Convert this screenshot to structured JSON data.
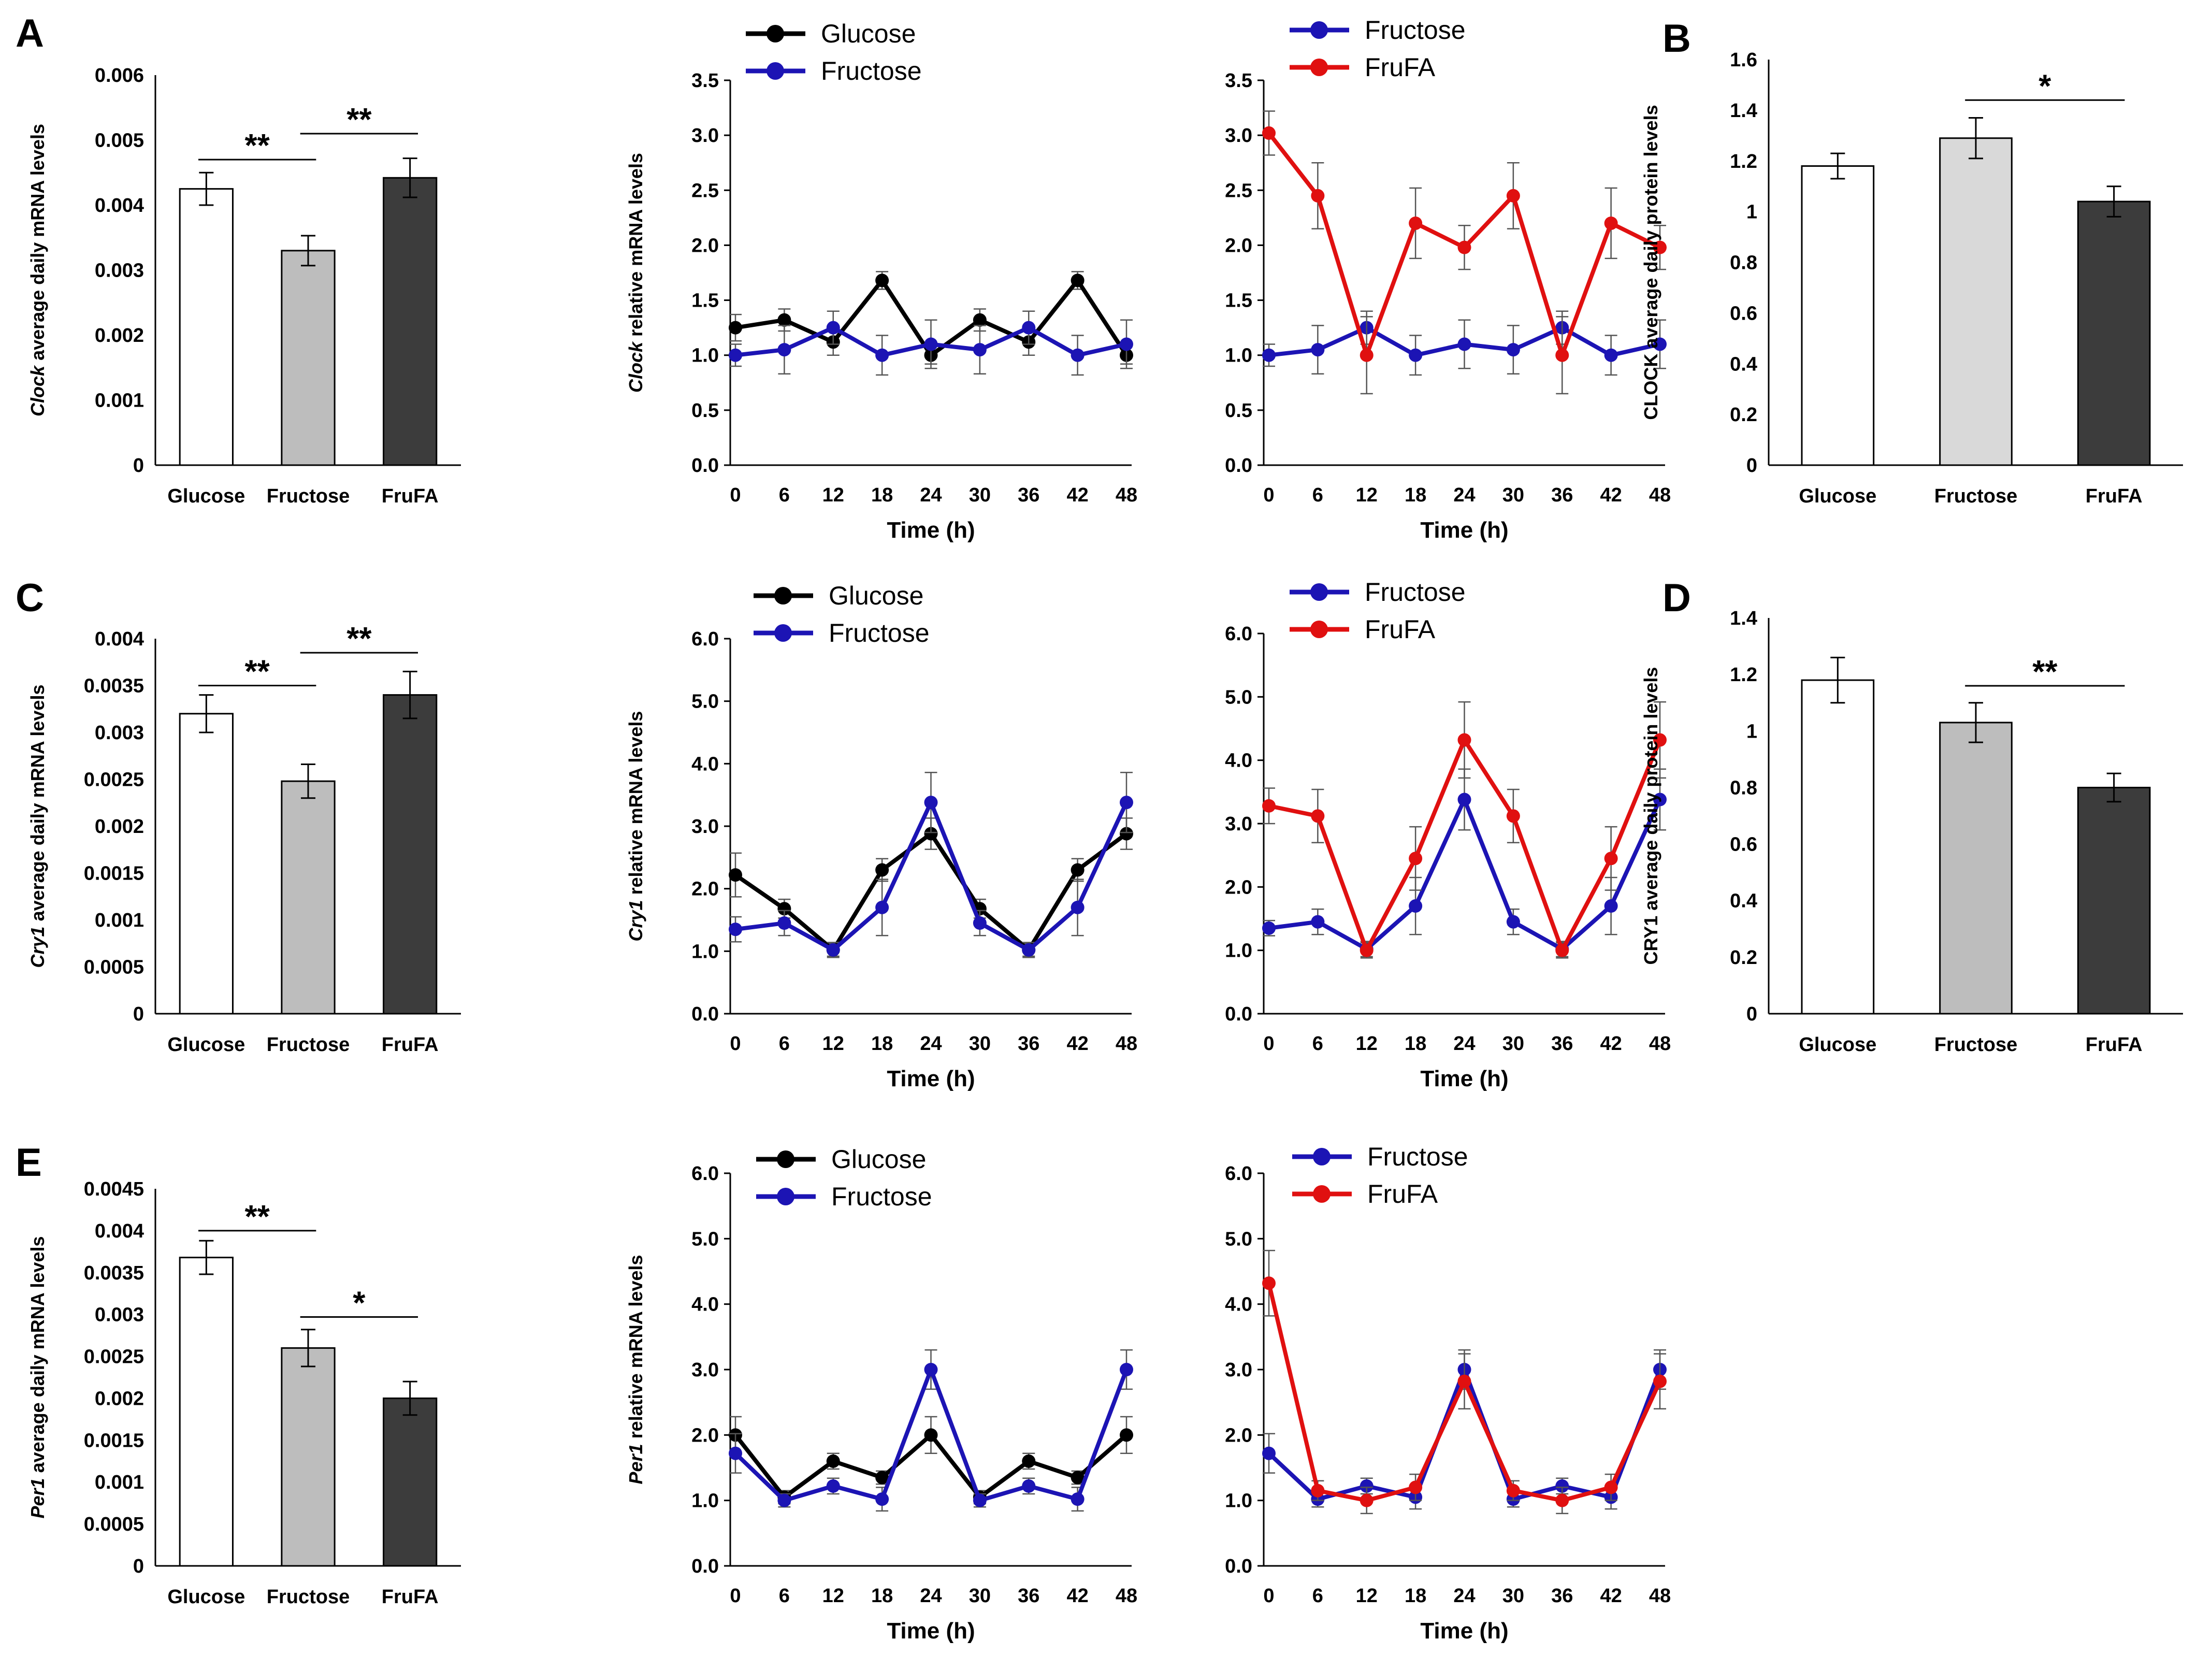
{
  "colors": {
    "glucose": "#000000",
    "fructose": "#1c14b4",
    "frufa": "#e01010",
    "bar_glucose": "#ffffff",
    "bar_fructose": "#bdbdbd",
    "bar_frufa": "#3c3c3c",
    "bar_fructose_light": "#d9d9d9"
  },
  "chart_data": [
    {
      "type": "bar",
      "panel": "A",
      "ylabel_italic": "Clock",
      "ylabel_rest": " average daily mRNA levels",
      "categories": [
        "Glucose",
        "Fructose",
        "FruFA"
      ],
      "values": [
        0.00425,
        0.0033,
        0.00442
      ],
      "errors": [
        0.00025,
        0.00023,
        0.0003
      ],
      "ylim": [
        0,
        0.006
      ],
      "yticks": [
        "0",
        "0.001",
        "0.002",
        "0.003",
        "0.004",
        "0.005",
        "0.006"
      ],
      "significance": [
        {
          "from": 0,
          "to": 1,
          "y": 0.0047,
          "label": "**"
        },
        {
          "from": 1,
          "to": 2,
          "y": 0.0051,
          "label": "**"
        }
      ]
    },
    {
      "type": "line",
      "panel": "",
      "ylabel_italic": "Clock",
      "ylabel_rest": " relative mRNA levels",
      "xlabel": "Time (h)",
      "x": [
        "0",
        "6",
        "12",
        "18",
        "24",
        "30",
        "36",
        "42",
        "48"
      ],
      "ylim": [
        0,
        3.5
      ],
      "yticks": [
        "0.0",
        "0.5",
        "1.0",
        "1.5",
        "2.0",
        "2.5",
        "3.0",
        "3.5"
      ],
      "series": [
        {
          "name": "Glucose",
          "color_key": "glucose",
          "values": [
            1.25,
            1.32,
            1.12,
            1.68,
            1.0,
            1.32,
            1.12,
            1.68,
            1.0
          ],
          "errors": [
            0.12,
            0.1,
            0.12,
            0.08,
            0.08,
            0.1,
            0.12,
            0.08,
            0.08
          ]
        },
        {
          "name": "Fructose",
          "color_key": "fructose",
          "values": [
            1.0,
            1.05,
            1.25,
            1.0,
            1.1,
            1.05,
            1.25,
            1.0,
            1.1
          ],
          "errors": [
            0.1,
            0.22,
            0.15,
            0.18,
            0.22,
            0.22,
            0.15,
            0.18,
            0.22
          ]
        }
      ]
    },
    {
      "type": "line",
      "panel": "",
      "ylabel_italic": "",
      "ylabel_rest": "",
      "xlabel": "Time (h)",
      "x": [
        "0",
        "6",
        "12",
        "18",
        "24",
        "30",
        "36",
        "42",
        "48"
      ],
      "ylim": [
        0,
        3.5
      ],
      "yticks": [
        "0.0",
        "0.5",
        "1.0",
        "1.5",
        "2.0",
        "2.5",
        "3.0",
        "3.5"
      ],
      "series": [
        {
          "name": "Fructose",
          "color_key": "fructose",
          "values": [
            1.0,
            1.05,
            1.25,
            1.0,
            1.1,
            1.05,
            1.25,
            1.0,
            1.1
          ],
          "errors": [
            0.1,
            0.22,
            0.15,
            0.18,
            0.22,
            0.22,
            0.15,
            0.18,
            0.22
          ]
        },
        {
          "name": "FruFA",
          "color_key": "frufa",
          "values": [
            3.02,
            2.45,
            1.0,
            2.2,
            1.98,
            2.45,
            1.0,
            2.2,
            1.98
          ],
          "errors": [
            0.2,
            0.3,
            0.35,
            0.32,
            0.2,
            0.3,
            0.35,
            0.32,
            0.2
          ]
        }
      ]
    },
    {
      "type": "bar",
      "panel": "B",
      "ylabel_italic": "",
      "ylabel_rest": "CLOCK average daily protein levels",
      "categories": [
        "Glucose",
        "Fructose",
        "FruFA"
      ],
      "values": [
        1.18,
        1.29,
        1.04
      ],
      "errors": [
        0.05,
        0.08,
        0.06
      ],
      "ylim": [
        0,
        1.6
      ],
      "yticks": [
        "0",
        "0.2",
        "0.4",
        "0.6",
        "0.8",
        "1",
        "1.2",
        "1.4",
        "1.6"
      ],
      "significance": [
        {
          "from": 1,
          "to": 2,
          "y": 1.44,
          "label": "*"
        }
      ]
    },
    {
      "type": "bar",
      "panel": "C",
      "ylabel_italic": "Cry1",
      "ylabel_rest": " average daily mRNA levels",
      "categories": [
        "Glucose",
        "Fructose",
        "FruFA"
      ],
      "values": [
        0.0032,
        0.00248,
        0.0034
      ],
      "errors": [
        0.0002,
        0.00018,
        0.00025
      ],
      "ylim": [
        0,
        0.004
      ],
      "yticks": [
        "0",
        "0.0005",
        "0.001",
        "0.0015",
        "0.002",
        "0.0025",
        "0.003",
        "0.0035",
        "0.004"
      ],
      "significance": [
        {
          "from": 0,
          "to": 1,
          "y": 0.0035,
          "label": "**"
        },
        {
          "from": 1,
          "to": 2,
          "y": 0.00385,
          "label": "**"
        }
      ]
    },
    {
      "type": "line",
      "panel": "",
      "ylabel_italic": "Cry1",
      "ylabel_rest": " relative mRNA levels",
      "xlabel": "Time (h)",
      "x": [
        "0",
        "6",
        "12",
        "18",
        "24",
        "30",
        "36",
        "42",
        "48"
      ],
      "ylim": [
        0,
        6
      ],
      "yticks": [
        "0.0",
        "1.0",
        "2.0",
        "3.0",
        "4.0",
        "5.0",
        "6.0"
      ],
      "series": [
        {
          "name": "Glucose",
          "color_key": "glucose",
          "values": [
            2.22,
            1.68,
            1.02,
            2.3,
            2.88,
            1.68,
            1.02,
            2.3,
            2.88
          ],
          "errors": [
            0.35,
            0.15,
            0.1,
            0.18,
            0.25,
            0.15,
            0.1,
            0.18,
            0.25
          ]
        },
        {
          "name": "Fructose",
          "color_key": "fructose",
          "values": [
            1.35,
            1.45,
            1.02,
            1.7,
            3.38,
            1.45,
            1.02,
            1.7,
            3.38
          ],
          "errors": [
            0.2,
            0.2,
            0.12,
            0.45,
            0.48,
            0.2,
            0.12,
            0.45,
            0.48
          ]
        }
      ]
    },
    {
      "type": "line",
      "panel": "",
      "ylabel_italic": "",
      "ylabel_rest": "",
      "xlabel": "Time (h)",
      "x": [
        "0",
        "6",
        "12",
        "18",
        "24",
        "30",
        "36",
        "42",
        "48"
      ],
      "ylim": [
        0,
        6
      ],
      "yticks": [
        "0.0",
        "1.0",
        "2.0",
        "3.0",
        "4.0",
        "5.0",
        "6.0"
      ],
      "series": [
        {
          "name": "Fructose",
          "color_key": "fructose",
          "values": [
            1.35,
            1.45,
            1.02,
            1.7,
            3.38,
            1.45,
            1.02,
            1.7,
            3.38
          ],
          "errors": [
            0.12,
            0.2,
            0.12,
            0.45,
            0.48,
            0.2,
            0.12,
            0.45,
            0.48
          ]
        },
        {
          "name": "FruFA",
          "color_key": "frufa",
          "values": [
            3.28,
            3.12,
            1.0,
            2.45,
            4.32,
            3.12,
            1.0,
            2.45,
            4.32
          ],
          "errors": [
            0.28,
            0.42,
            0.12,
            0.5,
            0.6,
            0.42,
            0.12,
            0.5,
            0.6
          ]
        }
      ]
    },
    {
      "type": "bar",
      "panel": "D",
      "ylabel_italic": "",
      "ylabel_rest": "CRY1 average daily protein levels",
      "categories": [
        "Glucose",
        "Fructose",
        "FruFA"
      ],
      "values": [
        1.18,
        1.03,
        0.8
      ],
      "errors": [
        0.08,
        0.07,
        0.05
      ],
      "ylim": [
        0,
        1.4
      ],
      "yticks": [
        "0",
        "0.2",
        "0.4",
        "0.6",
        "0.8",
        "1",
        "1.2",
        "1.4"
      ],
      "significance": [
        {
          "from": 1,
          "to": 2,
          "y": 1.16,
          "label": "**"
        }
      ]
    },
    {
      "type": "bar",
      "panel": "E",
      "ylabel_italic": "Per1",
      "ylabel_rest": " average daily mRNA levels",
      "categories": [
        "Glucose",
        "Fructose",
        "FruFA"
      ],
      "values": [
        0.00368,
        0.0026,
        0.002
      ],
      "errors": [
        0.0002,
        0.00022,
        0.0002
      ],
      "ylim": [
        0,
        0.0045
      ],
      "yticks": [
        "0",
        "0.0005",
        "0.001",
        "0.0015",
        "0.002",
        "0.0025",
        "0.003",
        "0.0035",
        "0.004",
        "0.0045"
      ],
      "significance": [
        {
          "from": 0,
          "to": 1,
          "y": 0.004,
          "label": "**"
        },
        {
          "from": 1,
          "to": 2,
          "y": 0.00297,
          "label": "*"
        }
      ]
    },
    {
      "type": "line",
      "panel": "",
      "ylabel_italic": "Per1",
      "ylabel_rest": " relative mRNA levels",
      "xlabel": "Time (h)",
      "x": [
        "0",
        "6",
        "12",
        "18",
        "24",
        "30",
        "36",
        "42",
        "48"
      ],
      "ylim": [
        0,
        6
      ],
      "yticks": [
        "0.0",
        "1.0",
        "2.0",
        "3.0",
        "4.0",
        "5.0",
        "6.0"
      ],
      "series": [
        {
          "name": "Glucose",
          "color_key": "glucose",
          "values": [
            2.0,
            1.05,
            1.6,
            1.35,
            2.0,
            1.05,
            1.6,
            1.35,
            2.0
          ],
          "errors": [
            0.28,
            0.1,
            0.12,
            0.1,
            0.28,
            0.1,
            0.12,
            0.1,
            0.28
          ]
        },
        {
          "name": "Fructose",
          "color_key": "fructose",
          "values": [
            1.72,
            1.0,
            1.22,
            1.02,
            3.0,
            1.0,
            1.22,
            1.02,
            3.0
          ],
          "errors": [
            0.3,
            0.1,
            0.12,
            0.18,
            0.3,
            0.1,
            0.12,
            0.18,
            0.3
          ]
        }
      ]
    },
    {
      "type": "line",
      "panel": "",
      "ylabel_italic": "",
      "ylabel_rest": "",
      "xlabel": "Time (h)",
      "x": [
        "0",
        "6",
        "12",
        "18",
        "24",
        "30",
        "36",
        "42",
        "48"
      ],
      "ylim": [
        0,
        6
      ],
      "yticks": [
        "0.0",
        "1.0",
        "2.0",
        "3.0",
        "4.0",
        "5.0",
        "6.0"
      ],
      "series": [
        {
          "name": "Fructose",
          "color_key": "fructose",
          "values": [
            1.72,
            1.02,
            1.22,
            1.05,
            3.0,
            1.02,
            1.22,
            1.05,
            3.0
          ],
          "errors": [
            0.3,
            0.12,
            0.12,
            0.18,
            0.3,
            0.12,
            0.12,
            0.18,
            0.3
          ]
        },
        {
          "name": "FruFA",
          "color_key": "frufa",
          "values": [
            4.32,
            1.15,
            1.0,
            1.2,
            2.82,
            1.15,
            1.0,
            1.2,
            2.82
          ],
          "errors": [
            0.5,
            0.15,
            0.2,
            0.2,
            0.42,
            0.15,
            0.2,
            0.2,
            0.42
          ]
        }
      ]
    }
  ]
}
